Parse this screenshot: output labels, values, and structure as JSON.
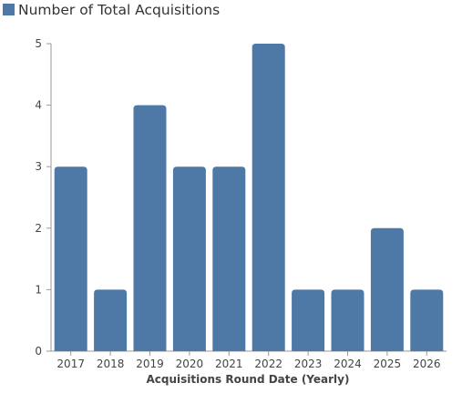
{
  "chart_data": {
    "type": "bar",
    "categories": [
      "2017",
      "2018",
      "2019",
      "2020",
      "2021",
      "2022",
      "2023",
      "2024",
      "2025",
      "2026"
    ],
    "series": [
      {
        "name": "Number of Total Acquisitions",
        "values": [
          3,
          1,
          4,
          3,
          3,
          5,
          1,
          1,
          2,
          1
        ],
        "color": "#4e79a7"
      }
    ],
    "xlabel": "Acquisitions Round Date (Yearly)",
    "ylabel": "",
    "ylim": [
      0,
      5
    ],
    "yticks": [
      "0",
      "1",
      "2",
      "3",
      "4",
      "5"
    ],
    "legend_position": "top-left",
    "grid": false
  }
}
